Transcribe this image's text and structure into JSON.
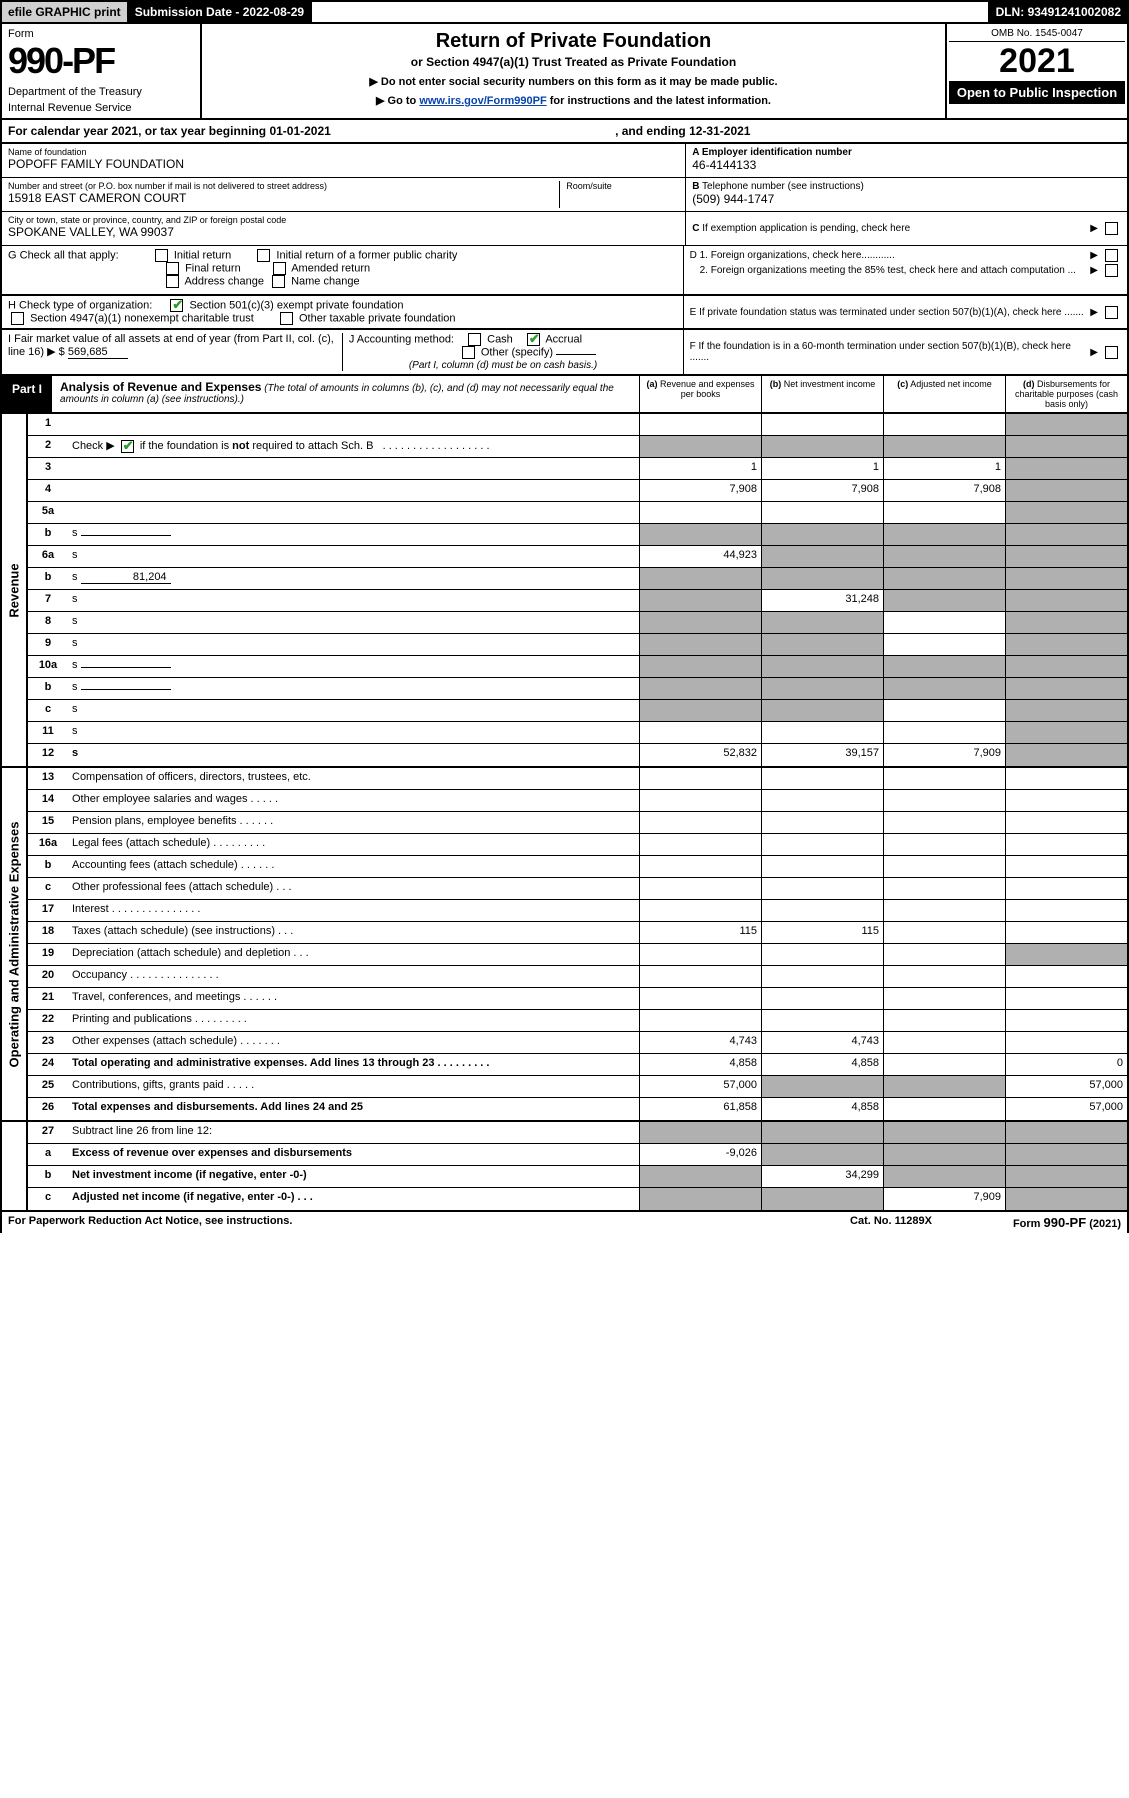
{
  "topbar": {
    "efile": "efile GRAPHIC print",
    "submission_label": "Submission Date - ",
    "submission_date": "2022-08-29",
    "dln_label": "DLN: ",
    "dln": "93491241002082"
  },
  "header": {
    "form_word": "Form",
    "form_number": "990-PF",
    "dept1": "Department of the Treasury",
    "dept2": "Internal Revenue Service",
    "title": "Return of Private Foundation",
    "sub1": "or Section 4947(a)(1) Trust Treated as Private Foundation",
    "sub2a": "▶ Do not enter social security numbers on this form as it may be made public.",
    "sub2b": "▶ Go to ",
    "link": "www.irs.gov/Form990PF",
    "sub2c": " for instructions and the latest information.",
    "omb": "OMB No. 1545-0047",
    "tax_year": "2021",
    "open": "Open to Public Inspection"
  },
  "cal_year": {
    "left": "For calendar year 2021, or tax year beginning 01-01-2021",
    "right": ", and ending 12-31-2021"
  },
  "info": {
    "name_label": "Name of foundation",
    "name": "POPOFF FAMILY FOUNDATION",
    "address_label": "Number and street (or P.O. box number if mail is not delivered to street address)",
    "address": "15918 EAST CAMERON COURT",
    "room_label": "Room/suite",
    "city_label": "City or town, state or province, country, and ZIP or foreign postal code",
    "city": "SPOKANE VALLEY, WA  99037",
    "a_label": "A Employer identification number",
    "a_value": "46-4144133",
    "b_label": "B",
    "b_text": " Telephone number (see instructions)",
    "b_value": "(509) 944-1747",
    "c_label": "C",
    "c_text": " If exemption application is pending, check here",
    "d1_label": "D 1.",
    "d1_text": " Foreign organizations, check here............",
    "d2_label": "2.",
    "d2_text": " Foreign organizations meeting the 85% test, check here and attach computation ...",
    "e_label": "E",
    "e_text": " If private foundation status was terminated under section 507(b)(1)(A), check here .......",
    "f_label": "F",
    "f_text": " If the foundation is in a 60-month termination under section 507(b)(1)(B), check here ......."
  },
  "g": {
    "label": "G",
    "text": " Check all that apply:",
    "opt1": "Initial return",
    "opt2": "Final return",
    "opt3": "Address change",
    "opt4": "Initial return of a former public charity",
    "opt5": "Amended return",
    "opt6": "Name change"
  },
  "h": {
    "label": "H",
    "text": " Check type of organization:",
    "opt1": "Section 501(c)(3) exempt private foundation",
    "opt2": "Section 4947(a)(1) nonexempt charitable trust",
    "opt3": "Other taxable private foundation"
  },
  "i": {
    "label": "I",
    "text": " Fair market value of all assets at end of year (from Part II, col. (c), line 16) ▶ $",
    "value": "569,685"
  },
  "j": {
    "label": "J",
    "text": " Accounting method:",
    "cash": "Cash",
    "accrual": "Accrual",
    "other": "Other (specify)",
    "note": "(Part I, column (d) must be on cash basis.)"
  },
  "part1": {
    "label": "Part I",
    "title": "Analysis of Revenue and Expenses",
    "title_note": " (The total of amounts in columns (b), (c), and (d) may not necessarily equal the amounts in column (a) (see instructions).)",
    "col_a": "Revenue and expenses per books",
    "col_b": "Net investment income",
    "col_c": "Adjusted net income",
    "col_d": "Disbursements for charitable purposes (cash basis only)"
  },
  "side_labels": {
    "revenue": "Revenue",
    "expenses": "Operating and Administrative Expenses"
  },
  "rows": [
    {
      "n": "1",
      "d": "",
      "a": "",
      "b": "",
      "c": "",
      "sh_d": true
    },
    {
      "n": "2",
      "d": "s",
      "a": "s",
      "b": "s",
      "c": "s"
    },
    {
      "n": "3",
      "d": "",
      "a": "1",
      "b": "1",
      "c": "1"
    },
    {
      "n": "4",
      "d": "",
      "a": "7,908",
      "b": "7,908",
      "c": "7,908"
    },
    {
      "n": "5a",
      "d": "",
      "a": "",
      "b": "",
      "c": ""
    },
    {
      "n": "b",
      "d": "s",
      "a": "s",
      "b": "s",
      "c": "s",
      "inline": true
    },
    {
      "n": "6a",
      "d": "s",
      "a": "44,923",
      "b": "s",
      "c": "s"
    },
    {
      "n": "b",
      "d": "s",
      "a": "s",
      "b": "s",
      "c": "s",
      "inline_val": "81,204"
    },
    {
      "n": "7",
      "d": "s",
      "a": "s",
      "b": "31,248",
      "c": "s"
    },
    {
      "n": "8",
      "d": "s",
      "a": "s",
      "b": "s",
      "c": ""
    },
    {
      "n": "9",
      "d": "s",
      "a": "s",
      "b": "s",
      "c": ""
    },
    {
      "n": "10a",
      "d": "s",
      "a": "s",
      "b": "s",
      "c": "s",
      "inline": true
    },
    {
      "n": "b",
      "d": "s",
      "a": "s",
      "b": "s",
      "c": "s",
      "inline": true
    },
    {
      "n": "c",
      "d": "s",
      "a": "s",
      "b": "s",
      "c": ""
    },
    {
      "n": "11",
      "d": "s",
      "a": "",
      "b": "",
      "c": ""
    },
    {
      "n": "12",
      "d": "s",
      "a": "52,832",
      "b": "39,157",
      "c": "7,909",
      "bold": true
    }
  ],
  "exp_rows": [
    {
      "n": "13",
      "d": "Compensation of officers, directors, trustees, etc.",
      "a": "",
      "b": "",
      "c": "",
      "dd": ""
    },
    {
      "n": "14",
      "d": "Other employee salaries and wages  . . . . .",
      "a": "",
      "b": "",
      "c": "",
      "dd": ""
    },
    {
      "n": "15",
      "d": "Pension plans, employee benefits  . . . . . .",
      "a": "",
      "b": "",
      "c": "",
      "dd": ""
    },
    {
      "n": "16a",
      "d": "Legal fees (attach schedule) . . . . . . . . .",
      "a": "",
      "b": "",
      "c": "",
      "dd": ""
    },
    {
      "n": "b",
      "d": "Accounting fees (attach schedule)  . . . . . .",
      "a": "",
      "b": "",
      "c": "",
      "dd": ""
    },
    {
      "n": "c",
      "d": "Other professional fees (attach schedule)  . . .",
      "a": "",
      "b": "",
      "c": "",
      "dd": ""
    },
    {
      "n": "17",
      "d": "Interest  . . . . . . . . . . . . . . .",
      "a": "",
      "b": "",
      "c": "",
      "dd": ""
    },
    {
      "n": "18",
      "d": "Taxes (attach schedule) (see instructions)  . . .",
      "a": "115",
      "b": "115",
      "c": "",
      "dd": ""
    },
    {
      "n": "19",
      "d": "Depreciation (attach schedule) and depletion  . . .",
      "a": "",
      "b": "",
      "c": "",
      "dd": "s"
    },
    {
      "n": "20",
      "d": "Occupancy . . . . . . . . . . . . . . .",
      "a": "",
      "b": "",
      "c": "",
      "dd": ""
    },
    {
      "n": "21",
      "d": "Travel, conferences, and meetings . . . . . .",
      "a": "",
      "b": "",
      "c": "",
      "dd": ""
    },
    {
      "n": "22",
      "d": "Printing and publications . . . . . . . . .",
      "a": "",
      "b": "",
      "c": "",
      "dd": ""
    },
    {
      "n": "23",
      "d": "Other expenses (attach schedule) . . . . . . .",
      "a": "4,743",
      "b": "4,743",
      "c": "",
      "dd": ""
    },
    {
      "n": "24",
      "d": "Total operating and administrative expenses. Add lines 13 through 23  . . . . . . . . .",
      "a": "4,858",
      "b": "4,858",
      "c": "",
      "dd": "0",
      "bold": true
    },
    {
      "n": "25",
      "d": "Contributions, gifts, grants paid  . . . . .",
      "a": "57,000",
      "b": "s",
      "c": "s",
      "dd": "57,000"
    },
    {
      "n": "26",
      "d": "Total expenses and disbursements. Add lines 24 and 25",
      "a": "61,858",
      "b": "4,858",
      "c": "",
      "dd": "57,000",
      "bold": true
    }
  ],
  "rows27": [
    {
      "n": "27",
      "d": "Subtract line 26 from line 12:",
      "a": "s",
      "b": "s",
      "c": "s",
      "dd": "s"
    },
    {
      "n": "a",
      "d": "Excess of revenue over expenses and disbursements",
      "a": "-9,026",
      "b": "s",
      "c": "s",
      "dd": "s",
      "bold": true
    },
    {
      "n": "b",
      "d": "Net investment income (if negative, enter -0-)",
      "a": "s",
      "b": "34,299",
      "c": "s",
      "dd": "s",
      "bold": true
    },
    {
      "n": "c",
      "d": "Adjusted net income (if negative, enter -0-)  . . .",
      "a": "s",
      "b": "s",
      "c": "7,909",
      "dd": "s",
      "bold": true
    }
  ],
  "footer": {
    "left": "For Paperwork Reduction Act Notice, see instructions.",
    "center": "Cat. No. 11289X",
    "right": "Form 990-PF (2021)"
  },
  "chk2_checked": true,
  "colors": {
    "shaded": "#b0b0b0",
    "check": "#2aa02a",
    "link": "#0645ad"
  }
}
